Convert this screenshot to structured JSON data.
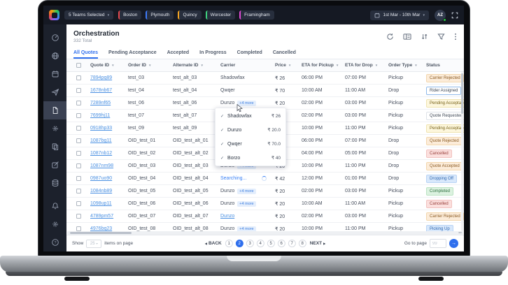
{
  "topbar": {
    "teams_dropdown": "5 Teams Selected",
    "teams": [
      {
        "name": "Boston",
        "color": "#e5484d"
      },
      {
        "name": "Plymouth",
        "color": "#3e7bfa"
      },
      {
        "name": "Quincy",
        "color": "#f5a623"
      },
      {
        "name": "Worcester",
        "color": "#3fd37f"
      },
      {
        "name": "Framingham",
        "color": "#e14ad6"
      }
    ],
    "date_range": "1st Mar - 10th Mar",
    "avatar_initials": "AZ",
    "online_color": "#27c93f"
  },
  "sidebar": {
    "icons": [
      "dashboard",
      "globe",
      "calendar",
      "dispatch",
      "orders",
      "automation",
      "documents",
      "compose",
      "data",
      "notifications",
      "settings",
      "help"
    ],
    "active": "orders"
  },
  "header": {
    "title": "Orchestration",
    "subtitle": "332 Total",
    "toolbar_icons": [
      "refresh",
      "columns",
      "sort",
      "filter",
      "kebab"
    ]
  },
  "tabs": [
    {
      "label": "All Quotes",
      "active": true
    },
    {
      "label": "Pending Acceptance",
      "active": false
    },
    {
      "label": "Accepted",
      "active": false
    },
    {
      "label": "In Progress",
      "active": false
    },
    {
      "label": "Completed",
      "active": false
    },
    {
      "label": "Cancelled",
      "active": false
    }
  ],
  "table": {
    "columns": [
      {
        "label": "Quote ID",
        "sortable": true
      },
      {
        "label": "Order ID",
        "sortable": true
      },
      {
        "label": "Alternate ID",
        "sortable": true
      },
      {
        "label": "Carrier",
        "sortable": false
      },
      {
        "label": "Price",
        "sortable": true
      },
      {
        "label": "ETA for Pickup",
        "sortable": true
      },
      {
        "label": "ETA for Drop",
        "sortable": true
      },
      {
        "label": "Order Type",
        "sortable": true
      },
      {
        "label": "Status",
        "sortable": false
      }
    ],
    "rows": [
      {
        "quote": "7894pq89",
        "order": "test_03",
        "alt": "test_alt_03",
        "carrier": {
          "type": "text",
          "name": "Shadowfax"
        },
        "price": "₹ 26",
        "eta_pickup": "06:00 PM",
        "eta_drop": "07:00 PM",
        "order_type": "Pickup",
        "status": {
          "label": "Carrier Rejected",
          "style": "orange"
        }
      },
      {
        "quote": "1678nb67",
        "order": "test_04",
        "alt": "test_alt_04",
        "carrier": {
          "type": "text",
          "name": "Qwqer"
        },
        "price": "₹ 70",
        "eta_pickup": "10:00 AM",
        "eta_drop": "11:00 AM",
        "order_type": "Drop",
        "status": {
          "label": "Rider Assigned",
          "style": "outline-blue"
        }
      },
      {
        "quote": "7289nf65",
        "order": "test_06",
        "alt": "test_alt_06",
        "carrier": {
          "type": "more",
          "name": "Dunzo",
          "chip": "+4 more"
        },
        "price": "₹ 20",
        "eta_pickup": "02:00 PM",
        "eta_drop": "03:00 PM",
        "order_type": "Pickup",
        "status": {
          "label": "Pending Acceptance",
          "style": "yellow"
        }
      },
      {
        "quote": "7699hj11",
        "order": "test_07",
        "alt": "test_alt_07",
        "carrier": {
          "type": "hidden",
          "name": ""
        },
        "price": "",
        "eta_pickup": "02:00 PM",
        "eta_drop": "03:00 PM",
        "order_type": "Pickup",
        "status": {
          "label": "Quote Requested",
          "style": "white"
        }
      },
      {
        "quote": "0918hp33",
        "order": "test_09",
        "alt": "test_alt_09",
        "carrier": {
          "type": "hidden",
          "name": ""
        },
        "price": "",
        "eta_pickup": "10:00 PM",
        "eta_drop": "11:00 PM",
        "order_type": "Pickup",
        "status": {
          "label": "Pending Acceptance",
          "style": "yellow"
        }
      },
      {
        "quote": "1087bg11",
        "order": "OID_test_01",
        "alt": "OID_test_alt_01",
        "carrier": {
          "type": "hidden",
          "name": ""
        },
        "price": "",
        "eta_pickup": "06:00 PM",
        "eta_drop": "07:00 PM",
        "order_type": "Drop",
        "status": {
          "label": "Quote Rejected",
          "style": "orange"
        }
      },
      {
        "quote": "1087nb12",
        "order": "OID_test_02",
        "alt": "OID_test_alt_02",
        "carrier": {
          "type": "hidden",
          "name": ""
        },
        "price": "",
        "eta_pickup": "04:00 PM",
        "eta_drop": "05:00 PM",
        "order_type": "Drop",
        "status": {
          "label": "Cancelled",
          "style": "red"
        }
      },
      {
        "quote": "1087nm98",
        "order": "OID_test_03",
        "alt": "OID_test_alt_03",
        "carrier": {
          "type": "more",
          "name": "Dunzo",
          "chip": "+4 more"
        },
        "price": "₹ 20",
        "eta_pickup": "10:00 PM",
        "eta_drop": "11:00 PM",
        "order_type": "Drop",
        "status": {
          "label": "Quote Accepted",
          "style": "orange"
        }
      },
      {
        "quote": "0987uo90",
        "order": "OID_test_04",
        "alt": "OID_test_alt_04",
        "carrier": {
          "type": "searching",
          "name": "Searching..."
        },
        "price": "₹ 42",
        "eta_pickup": "12:00 PM",
        "eta_drop": "01:00 PM",
        "order_type": "Drop",
        "status": {
          "label": "Dropping Off",
          "style": "blue"
        }
      },
      {
        "quote": "1084nb89",
        "order": "OID_test_05",
        "alt": "OID_test_alt_05",
        "carrier": {
          "type": "more",
          "name": "Dunzo",
          "chip": "+4 more"
        },
        "price": "₹ 20",
        "eta_pickup": "02:00 PM",
        "eta_drop": "03:00 PM",
        "order_type": "Pickup",
        "status": {
          "label": "Completed",
          "style": "green"
        }
      },
      {
        "quote": "1098up11",
        "order": "OID_test_06",
        "alt": "OID_test_alt_06",
        "carrier": {
          "type": "more",
          "name": "Dunzo",
          "chip": "+4 more"
        },
        "price": "₹ 20",
        "eta_pickup": "10:00 AM",
        "eta_drop": "11:00 AM",
        "order_type": "Pickup",
        "status": {
          "label": "Cancelled",
          "style": "red"
        }
      },
      {
        "quote": "4789pm57",
        "order": "OID_test_07",
        "alt": "OID_test_alt_07",
        "carrier": {
          "type": "link",
          "name": "Dunzo"
        },
        "price": "₹ 20",
        "eta_pickup": "02:00 PM",
        "eta_drop": "03:00 PM",
        "order_type": "Pickup",
        "status": {
          "label": "Carrier Rejected",
          "style": "orange"
        }
      },
      {
        "quote": "4976bq23",
        "order": "OID_test_08",
        "alt": "OID_test_alt_08",
        "carrier": {
          "type": "more",
          "name": "Dunzo",
          "chip": "+4 more"
        },
        "price": "₹ 20",
        "eta_pickup": "10:00 PM",
        "eta_drop": "11:00 PM",
        "order_type": "Pickup",
        "status": {
          "label": "Picking Up",
          "style": "blue"
        }
      }
    ]
  },
  "carrier_dropdown": {
    "items": [
      {
        "name": "Shadowfax",
        "price": "₹ 26",
        "price_color": "default"
      },
      {
        "name": "Dunzo",
        "price": "₹ 20.0",
        "price_color": "green"
      },
      {
        "name": "Qwqer",
        "price": "₹ 70.0",
        "price_color": "red"
      },
      {
        "name": "Borzo",
        "price": "₹ 40",
        "price_color": "default"
      }
    ]
  },
  "footer": {
    "show_label": "Show",
    "page_size": "25",
    "items_label": "items on page",
    "back_label": "BACK",
    "next_label": "NEXT",
    "pages": [
      "1",
      "2",
      "3",
      "4",
      "5",
      "6",
      "7",
      "8"
    ],
    "active_page": "2",
    "goto_label": "Go to page",
    "goto_placeholder": "99"
  }
}
